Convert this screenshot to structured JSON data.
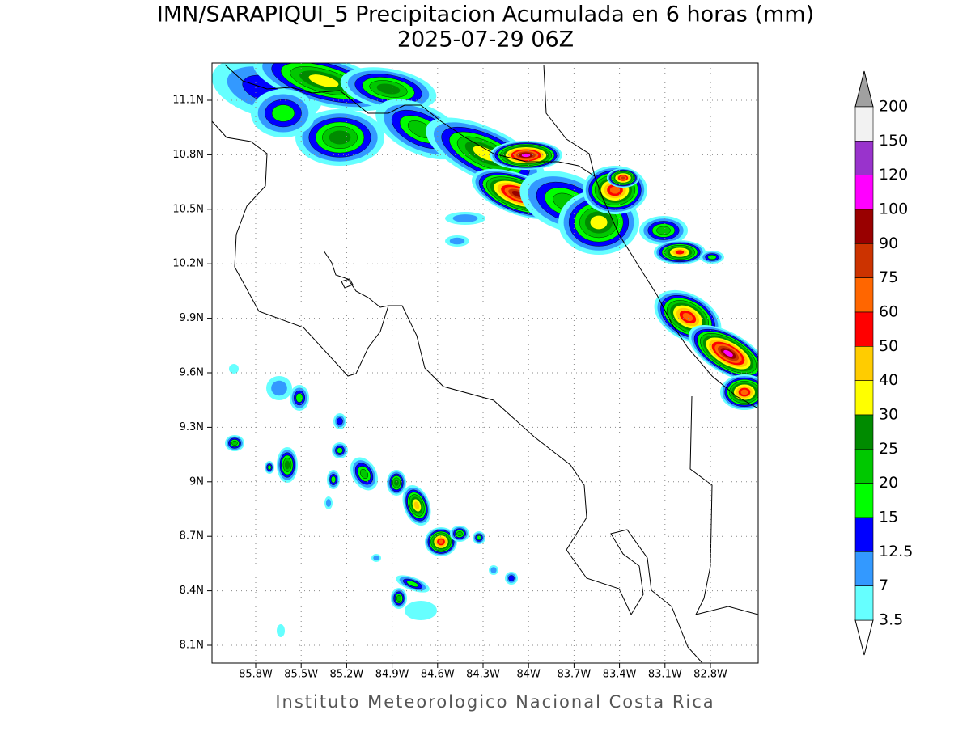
{
  "header": {
    "title": "IMN/SARAPIQUI_5 Precipitacion Acumulada en 6 horas (mm)",
    "subtitle": "2025-07-29 06Z"
  },
  "map": {
    "lon_labels": [
      "85.8W",
      "85.5W",
      "85.2W",
      "84.9W",
      "84.6W",
      "84.3W",
      "84W",
      "83.7W",
      "83.4W",
      "83.1W",
      "82.8W"
    ],
    "lat_labels": [
      "11.1N",
      "10.8N",
      "10.5N",
      "10.2N",
      "9.9N",
      "9.6N",
      "9.3N",
      "9N",
      "8.7N",
      "8.4N",
      "8.1N"
    ]
  },
  "colorbar": {
    "labels": [
      "200",
      "150",
      "120",
      "100",
      "90",
      "75",
      "60",
      "50",
      "40",
      "30",
      "25",
      "20",
      "15",
      "12.5",
      "7",
      "3.5"
    ],
    "colors": [
      "#f2f2f2",
      "#9933cc",
      "#ff00ff",
      "#990000",
      "#cc3300",
      "#ff6600",
      "#ff0000",
      "#ffcc00",
      "#ffff00",
      "#008b00",
      "#00c800",
      "#00ff00",
      "#0000ff",
      "#3399ff",
      "#66ffff"
    ],
    "over_color": "#a0a0a0",
    "under_color": "#ffffff"
  },
  "footer": "Instituto Meteorologico Nacional Costa Rica"
}
